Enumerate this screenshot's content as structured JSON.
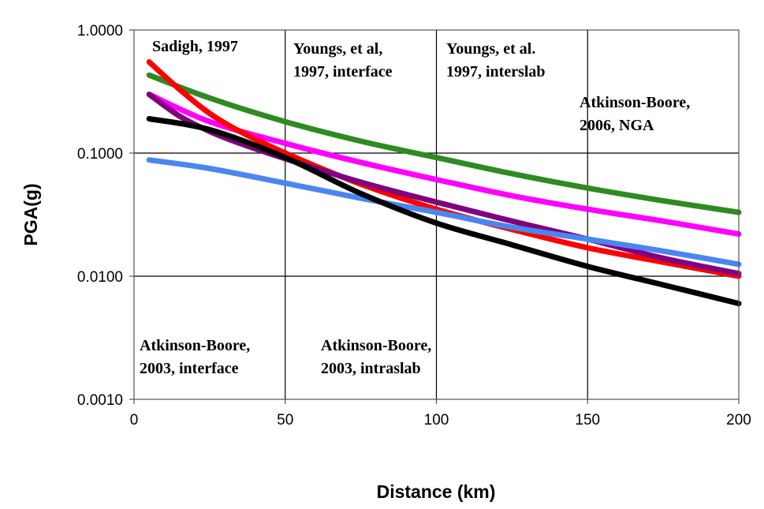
{
  "chart_data": {
    "type": "line",
    "title": "",
    "xlabel": "Distance (km)",
    "ylabel": "PGA(g)",
    "xlim": [
      0,
      200
    ],
    "ylim": [
      0.001,
      1
    ],
    "yscale": "log",
    "grid": true,
    "x_ticks": [
      "0",
      "50",
      "100",
      "150",
      "200"
    ],
    "y_ticks": [
      "0.0010",
      "0.0100",
      "0.1000",
      "1.0000"
    ],
    "annotations": [
      {
        "lines": [
          "Sadigh, 1997"
        ]
      },
      {
        "lines": [
          "Youngs, et al,",
          "1997, interface"
        ]
      },
      {
        "lines": [
          "Youngs, et al.",
          "1997, interslab"
        ]
      },
      {
        "lines": [
          "Atkinson-Boore,",
          "2006, NGA"
        ]
      },
      {
        "lines": [
          "Atkinson-Boore,",
          "2003, interface"
        ]
      },
      {
        "lines": [
          "Atkinson-Boore,",
          "2003, intraslab"
        ]
      }
    ],
    "series": [
      {
        "color": "#2e8b22",
        "x": [
          5,
          25,
          50,
          75,
          100,
          125,
          150,
          175,
          200
        ],
        "y": [
          0.43,
          0.28,
          0.18,
          0.125,
          0.092,
          0.068,
          0.052,
          0.041,
          0.033
        ]
      },
      {
        "color": "#ff00ff",
        "x": [
          5,
          25,
          50,
          75,
          100,
          125,
          150,
          175,
          200
        ],
        "y": [
          0.3,
          0.18,
          0.12,
          0.084,
          0.061,
          0.045,
          0.035,
          0.028,
          0.022
        ]
      },
      {
        "color": "#ff0000",
        "x": [
          5,
          15,
          25,
          35,
          50,
          75,
          100,
          125,
          150,
          175,
          200
        ],
        "y": [
          0.55,
          0.33,
          0.21,
          0.15,
          0.1,
          0.056,
          0.035,
          0.024,
          0.017,
          0.013,
          0.01
        ]
      },
      {
        "color": "#800080",
        "x": [
          5,
          15,
          25,
          35,
          50,
          75,
          100,
          125,
          150,
          175,
          200
        ],
        "y": [
          0.3,
          0.2,
          0.15,
          0.12,
          0.09,
          0.058,
          0.04,
          0.028,
          0.02,
          0.014,
          0.0105
        ]
      },
      {
        "color": "#4a86f0",
        "x": [
          5,
          25,
          50,
          75,
          100,
          125,
          150,
          175,
          200
        ],
        "y": [
          0.088,
          0.075,
          0.057,
          0.043,
          0.033,
          0.025,
          0.02,
          0.016,
          0.0125
        ]
      },
      {
        "color": "#000000",
        "x": [
          5,
          25,
          50,
          75,
          100,
          125,
          150,
          175,
          200
        ],
        "y": [
          0.19,
          0.155,
          0.092,
          0.047,
          0.027,
          0.018,
          0.012,
          0.0085,
          0.006
        ]
      }
    ]
  }
}
